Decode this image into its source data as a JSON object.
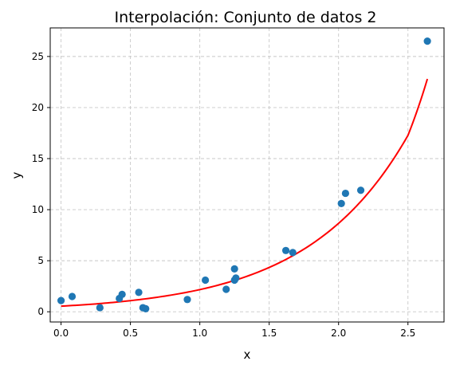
{
  "chart_data": {
    "type": "scatter",
    "title": "Interpolación: Conjunto de datos 2",
    "xlabel": "x",
    "ylabel": "y",
    "xlim": [
      -0.078,
      2.76
    ],
    "ylim": [
      -1.0,
      27.8
    ],
    "xticks": [
      0.0,
      0.5,
      1.0,
      1.5,
      2.0,
      2.5
    ],
    "xtick_labels": [
      "0.0",
      "0.5",
      "1.0",
      "1.5",
      "2.0",
      "2.5"
    ],
    "yticks": [
      0,
      5,
      10,
      15,
      20,
      25
    ],
    "ytick_labels": [
      "0",
      "5",
      "10",
      "15",
      "20",
      "25"
    ],
    "grid": true,
    "series": [
      {
        "kind": "scatter",
        "color": "#1f77b4",
        "points": [
          {
            "x": 0.0,
            "y": 1.1
          },
          {
            "x": 0.08,
            "y": 1.5
          },
          {
            "x": 0.28,
            "y": 0.4
          },
          {
            "x": 0.42,
            "y": 1.3
          },
          {
            "x": 0.44,
            "y": 1.7
          },
          {
            "x": 0.56,
            "y": 1.9
          },
          {
            "x": 0.59,
            "y": 0.4
          },
          {
            "x": 0.61,
            "y": 0.3
          },
          {
            "x": 0.91,
            "y": 1.2
          },
          {
            "x": 1.04,
            "y": 3.1
          },
          {
            "x": 1.19,
            "y": 2.2
          },
          {
            "x": 1.25,
            "y": 4.2
          },
          {
            "x": 1.25,
            "y": 3.1
          },
          {
            "x": 1.26,
            "y": 3.3
          },
          {
            "x": 1.62,
            "y": 6.0
          },
          {
            "x": 1.67,
            "y": 5.8
          },
          {
            "x": 2.02,
            "y": 10.6
          },
          {
            "x": 2.05,
            "y": 11.6
          },
          {
            "x": 2.16,
            "y": 11.9
          },
          {
            "x": 2.64,
            "y": 26.5
          }
        ]
      },
      {
        "kind": "line",
        "color": "#ff0000",
        "x": [
          0.0,
          0.25,
          0.5,
          0.75,
          1.0,
          1.25,
          1.5,
          1.75,
          2.0,
          2.25,
          2.5,
          2.64
        ],
        "y": [
          0.55,
          0.77,
          1.09,
          1.54,
          2.17,
          3.07,
          4.34,
          6.13,
          8.66,
          12.23,
          17.27,
          22.8
        ]
      }
    ]
  }
}
